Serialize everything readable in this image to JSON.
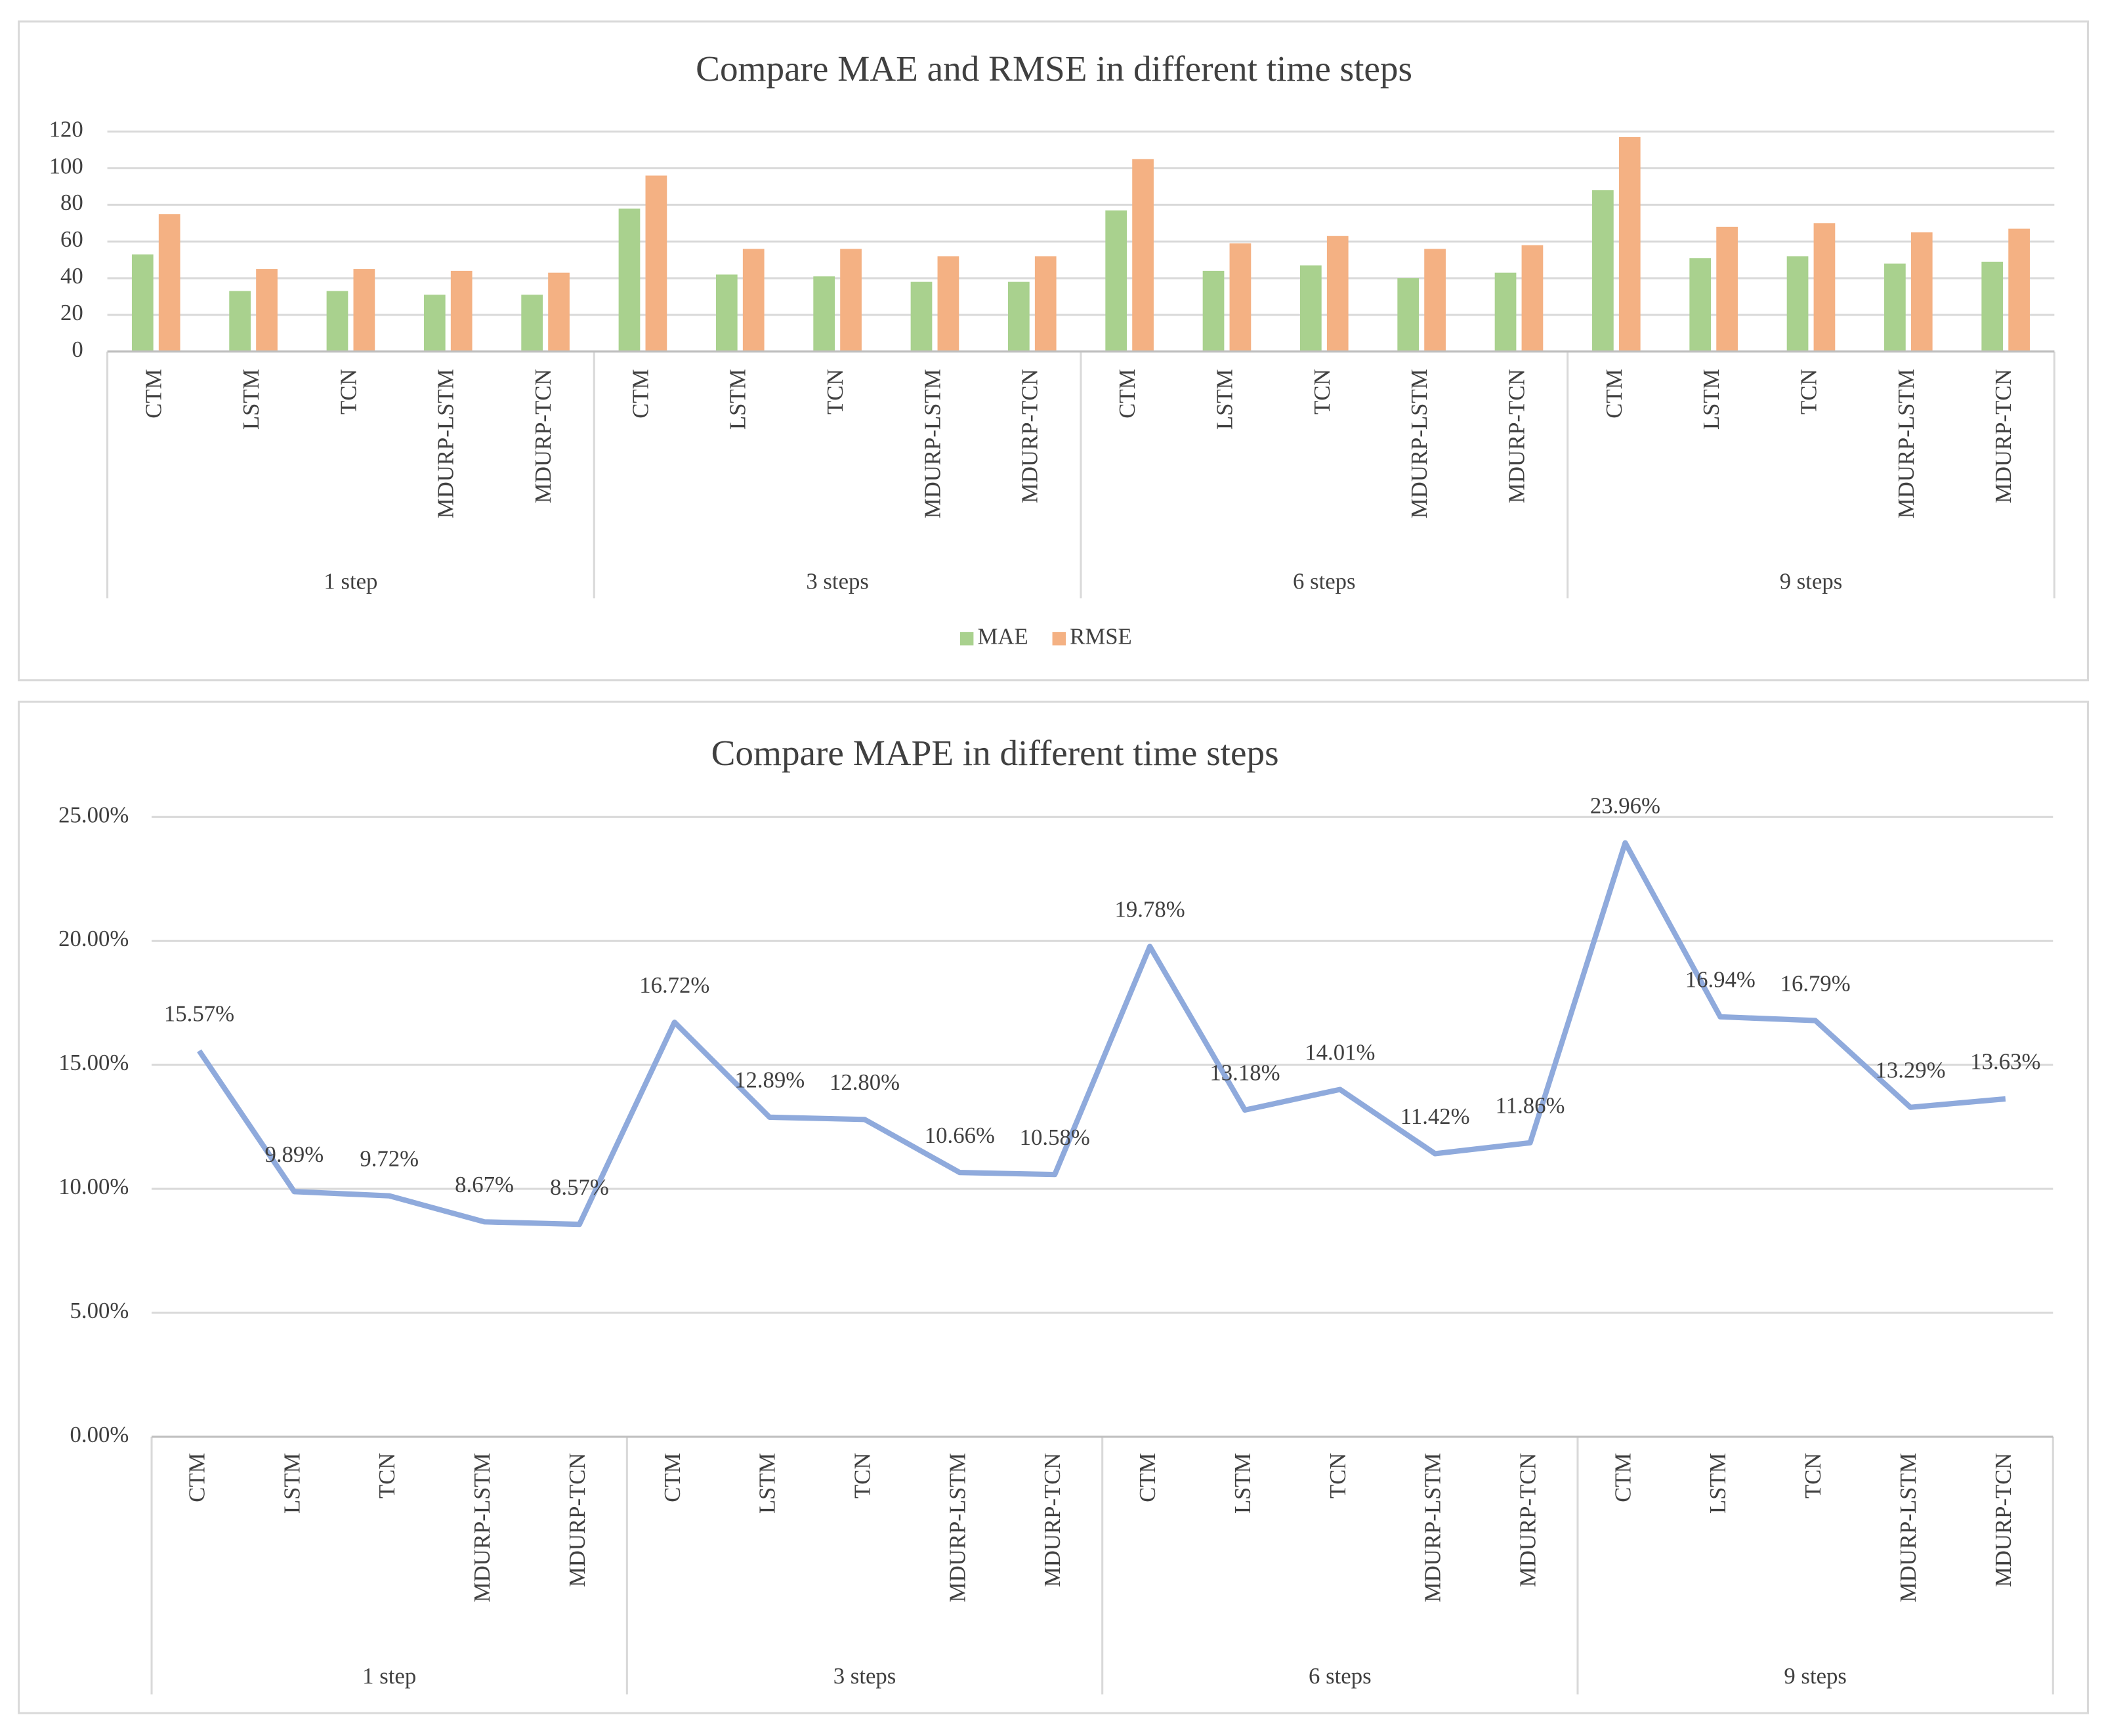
{
  "chart_data": [
    {
      "type": "bar",
      "title": "Compare MAE and RMSE in different time steps",
      "categories": [
        "CTM",
        "LSTM",
        "TCN",
        "MDURP-LSTM",
        "MDURP-TCN",
        "CTM",
        "LSTM",
        "TCN",
        "MDURP-LSTM",
        "MDURP-TCN",
        "CTM",
        "LSTM",
        "TCN",
        "MDURP-LSTM",
        "MDURP-TCN",
        "CTM",
        "LSTM",
        "TCN",
        "MDURP-LSTM",
        "MDURP-TCN"
      ],
      "groups": [
        "1 step",
        "3 steps",
        "6 steps",
        "9 steps"
      ],
      "series": [
        {
          "name": "MAE",
          "color": "#a9d18e",
          "values": [
            53,
            33,
            33,
            31,
            31,
            78,
            42,
            41,
            38,
            38,
            77,
            44,
            47,
            40,
            43,
            88,
            51,
            52,
            48,
            49
          ]
        },
        {
          "name": "RMSE",
          "color": "#f4b183",
          "values": [
            75,
            45,
            45,
            44,
            43,
            96,
            56,
            56,
            52,
            52,
            105,
            59,
            63,
            56,
            58,
            117,
            68,
            70,
            65,
            67
          ]
        }
      ],
      "ylim": [
        0,
        120
      ],
      "yticks": [
        0,
        20,
        40,
        60,
        80,
        100,
        120
      ],
      "grid": true,
      "legend": "bottom"
    },
    {
      "type": "line",
      "title": "Compare MAPE in different time steps",
      "categories": [
        "CTM",
        "LSTM",
        "TCN",
        "MDURP-LSTM",
        "MDURP-TCN",
        "CTM",
        "LSTM",
        "TCN",
        "MDURP-LSTM",
        "MDURP-TCN",
        "CTM",
        "LSTM",
        "TCN",
        "MDURP-LSTM",
        "MDURP-TCN",
        "CTM",
        "LSTM",
        "TCN",
        "MDURP-LSTM",
        "MDURP-TCN"
      ],
      "groups": [
        "1 step",
        "3 steps",
        "6 steps",
        "9 steps"
      ],
      "color": "#8faadc",
      "values": [
        15.57,
        9.89,
        9.72,
        8.67,
        8.57,
        16.72,
        12.89,
        12.8,
        10.66,
        10.58,
        19.78,
        13.18,
        14.01,
        11.42,
        11.86,
        23.96,
        16.94,
        16.79,
        13.29,
        13.63
      ],
      "value_labels": [
        "15.57%",
        "9.89%",
        "9.72%",
        "8.67%",
        "8.57%",
        "16.72%",
        "12.89%",
        "12.80%",
        "10.66%",
        "10.58%",
        "19.78%",
        "13.18%",
        "14.01%",
        "11.42%",
        "11.86%",
        "23.96%",
        "16.94%",
        "16.79%",
        "13.29%",
        "13.63%"
      ],
      "ylim": [
        0,
        25
      ],
      "yticks": [
        {
          "value": 0,
          "label": "0.00%"
        },
        {
          "value": 5,
          "label": "5.00%"
        },
        {
          "value": 10,
          "label": "10.00%"
        },
        {
          "value": 15,
          "label": "15.00%"
        },
        {
          "value": 20,
          "label": "20.00%"
        },
        {
          "value": 25,
          "label": "25.00%"
        }
      ],
      "grid": true
    }
  ]
}
